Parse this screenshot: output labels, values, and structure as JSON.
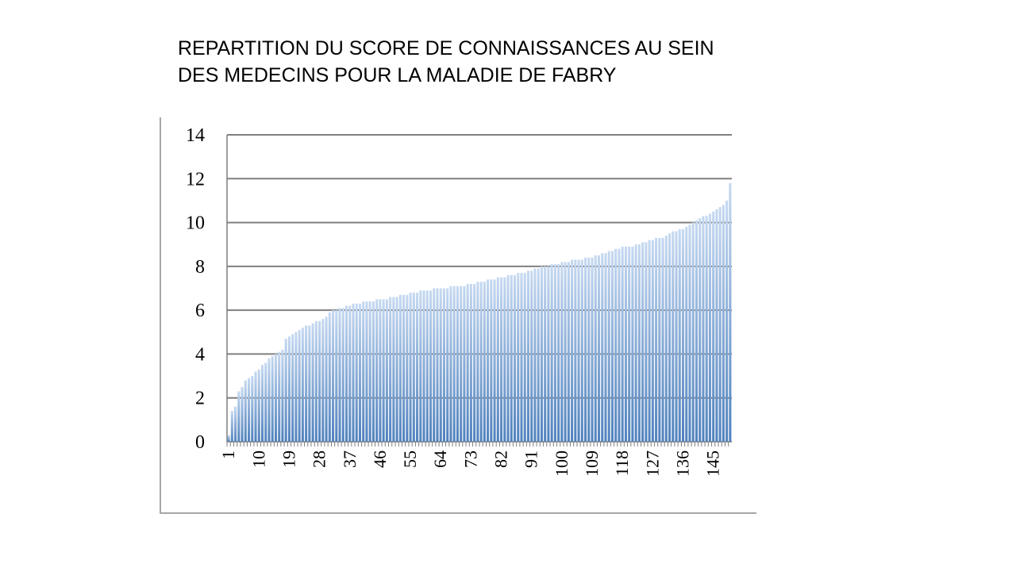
{
  "slide": {
    "title_line1": "REPARTITION DU SCORE DE CONNAISSANCES AU SEIN",
    "title_line2": "DES MEDECINS POUR LA MALADIE DE FABRY"
  },
  "colors": {
    "bar_top": "#c6d9f1",
    "bar_bottom": "#4f81bd",
    "gridline": "#7f7f7f",
    "frame": "#a6a6a6"
  },
  "chart_data": {
    "type": "bar",
    "title": "REPARTITION DU SCORE DE CONNAISSANCES AU SEIN DES MEDECINS POUR LA MALADIE DE FABRY",
    "xlabel": "",
    "ylabel": "",
    "ylim": [
      0,
      14
    ],
    "yticks": [
      0,
      2,
      4,
      6,
      8,
      10,
      12,
      14
    ],
    "x_tick_labels": [
      "1",
      "10",
      "19",
      "28",
      "37",
      "46",
      "55",
      "64",
      "73",
      "82",
      "91",
      "100",
      "109",
      "118",
      "127",
      "136",
      "145"
    ],
    "grid": true,
    "legend": "none",
    "categories": [
      1,
      2,
      3,
      4,
      5,
      6,
      7,
      8,
      9,
      10,
      11,
      12,
      13,
      14,
      15,
      16,
      17,
      18,
      19,
      20,
      21,
      22,
      23,
      24,
      25,
      26,
      27,
      28,
      29,
      30,
      31,
      32,
      33,
      34,
      35,
      36,
      37,
      38,
      39,
      40,
      41,
      42,
      43,
      44,
      45,
      46,
      47,
      48,
      49,
      50,
      51,
      52,
      53,
      54,
      55,
      56,
      57,
      58,
      59,
      60,
      61,
      62,
      63,
      64,
      65,
      66,
      67,
      68,
      69,
      70,
      71,
      72,
      73,
      74,
      75,
      76,
      77,
      78,
      79,
      80,
      81,
      82,
      83,
      84,
      85,
      86,
      87,
      88,
      89,
      90,
      91,
      92,
      93,
      94,
      95,
      96,
      97,
      98,
      99,
      100,
      101,
      102,
      103,
      104,
      105,
      106,
      107,
      108,
      109,
      110,
      111,
      112,
      113,
      114,
      115,
      116,
      117,
      118,
      119,
      120,
      121,
      122,
      123,
      124,
      125,
      126,
      127,
      128,
      129,
      130,
      131,
      132,
      133,
      134,
      135,
      136,
      137,
      138,
      139,
      140,
      141,
      142,
      143,
      144,
      145,
      146,
      147,
      148,
      149,
      150
    ],
    "values": [
      0.3,
      1.4,
      1.6,
      2.3,
      2.5,
      2.8,
      2.9,
      3.0,
      3.2,
      3.3,
      3.5,
      3.6,
      3.8,
      3.9,
      4.0,
      4.1,
      4.2,
      4.7,
      4.8,
      4.9,
      5.0,
      5.1,
      5.2,
      5.3,
      5.3,
      5.4,
      5.5,
      5.5,
      5.6,
      5.7,
      5.9,
      6.0,
      6.0,
      6.1,
      6.1,
      6.2,
      6.2,
      6.3,
      6.3,
      6.3,
      6.4,
      6.4,
      6.4,
      6.4,
      6.5,
      6.5,
      6.5,
      6.5,
      6.6,
      6.6,
      6.6,
      6.7,
      6.7,
      6.7,
      6.8,
      6.8,
      6.8,
      6.9,
      6.9,
      6.9,
      6.9,
      7.0,
      7.0,
      7.0,
      7.0,
      7.0,
      7.1,
      7.1,
      7.1,
      7.1,
      7.1,
      7.2,
      7.2,
      7.2,
      7.3,
      7.3,
      7.3,
      7.4,
      7.4,
      7.4,
      7.5,
      7.5,
      7.5,
      7.6,
      7.6,
      7.6,
      7.7,
      7.7,
      7.7,
      7.8,
      7.8,
      7.9,
      7.9,
      8.0,
      8.0,
      8.0,
      8.1,
      8.1,
      8.1,
      8.2,
      8.2,
      8.2,
      8.3,
      8.3,
      8.3,
      8.3,
      8.4,
      8.4,
      8.4,
      8.5,
      8.5,
      8.6,
      8.6,
      8.7,
      8.7,
      8.8,
      8.8,
      8.9,
      8.9,
      8.9,
      8.9,
      9.0,
      9.0,
      9.1,
      9.1,
      9.2,
      9.2,
      9.3,
      9.3,
      9.3,
      9.4,
      9.5,
      9.6,
      9.6,
      9.7,
      9.7,
      9.8,
      9.9,
      10.0,
      10.1,
      10.2,
      10.3,
      10.3,
      10.4,
      10.5,
      10.6,
      10.7,
      10.8,
      11.0,
      11.8
    ]
  }
}
